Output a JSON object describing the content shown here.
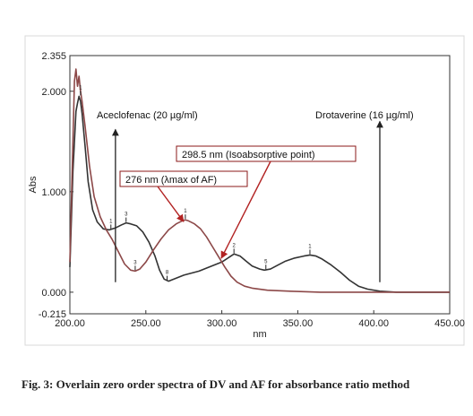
{
  "chart_data": {
    "type": "line",
    "xlabel": "nm",
    "ylabel": "Abs",
    "xlim": [
      200,
      450
    ],
    "ylim": [
      -0.215,
      2.355
    ],
    "xticks": [
      "200.00",
      "250.00",
      "300.00",
      "350.00",
      "400.00",
      "450.00"
    ],
    "yticks": [
      "2.355",
      "2.000",
      "1.000",
      "0.000",
      "-0.215"
    ],
    "grid": false,
    "series": [
      {
        "color": "#333333",
        "points": [
          [
            200,
            0.25
          ],
          [
            202,
            1.2
          ],
          [
            204,
            1.8
          ],
          [
            205,
            1.88
          ],
          [
            206,
            1.95
          ],
          [
            207,
            1.9
          ],
          [
            208,
            1.78
          ],
          [
            210,
            1.45
          ],
          [
            212,
            1.1
          ],
          [
            215,
            0.82
          ],
          [
            218,
            0.7
          ],
          [
            222,
            0.63
          ],
          [
            226,
            0.62
          ],
          [
            230,
            0.64
          ],
          [
            234,
            0.67
          ],
          [
            237,
            0.69
          ],
          [
            240,
            0.68
          ],
          [
            244,
            0.66
          ],
          [
            248,
            0.6
          ],
          [
            252,
            0.5
          ],
          [
            256,
            0.36
          ],
          [
            259,
            0.22
          ],
          [
            262,
            0.13
          ],
          [
            265,
            0.11
          ],
          [
            270,
            0.14
          ],
          [
            275,
            0.17
          ],
          [
            280,
            0.19
          ],
          [
            285,
            0.21
          ],
          [
            290,
            0.24
          ],
          [
            295,
            0.27
          ],
          [
            300,
            0.3
          ],
          [
            305,
            0.35
          ],
          [
            308,
            0.38
          ],
          [
            312,
            0.36
          ],
          [
            316,
            0.31
          ],
          [
            320,
            0.26
          ],
          [
            325,
            0.23
          ],
          [
            328,
            0.22
          ],
          [
            332,
            0.23
          ],
          [
            337,
            0.27
          ],
          [
            342,
            0.31
          ],
          [
            348,
            0.34
          ],
          [
            354,
            0.36
          ],
          [
            358,
            0.37
          ],
          [
            362,
            0.36
          ],
          [
            366,
            0.33
          ],
          [
            372,
            0.27
          ],
          [
            378,
            0.2
          ],
          [
            384,
            0.12
          ],
          [
            390,
            0.06
          ],
          [
            396,
            0.03
          ],
          [
            404,
            0.01
          ],
          [
            415,
            0.0
          ],
          [
            430,
            0.0
          ],
          [
            450,
            0.0
          ]
        ]
      },
      {
        "color": "#8c4848",
        "points": [
          [
            200,
            0.3
          ],
          [
            202,
            1.5
          ],
          [
            203,
            2.1
          ],
          [
            204,
            2.22
          ],
          [
            205,
            2.05
          ],
          [
            206,
            2.15
          ],
          [
            207,
            2.0
          ],
          [
            208,
            1.9
          ],
          [
            210,
            1.65
          ],
          [
            213,
            1.25
          ],
          [
            216,
            0.95
          ],
          [
            220,
            0.75
          ],
          [
            224,
            0.62
          ],
          [
            228,
            0.52
          ],
          [
            232,
            0.4
          ],
          [
            236,
            0.28
          ],
          [
            240,
            0.22
          ],
          [
            243,
            0.21
          ],
          [
            246,
            0.23
          ],
          [
            250,
            0.3
          ],
          [
            255,
            0.42
          ],
          [
            260,
            0.53
          ],
          [
            265,
            0.62
          ],
          [
            270,
            0.68
          ],
          [
            274,
            0.71
          ],
          [
            276,
            0.72
          ],
          [
            278,
            0.71
          ],
          [
            282,
            0.68
          ],
          [
            286,
            0.63
          ],
          [
            290,
            0.55
          ],
          [
            294,
            0.45
          ],
          [
            298,
            0.35
          ],
          [
            302,
            0.25
          ],
          [
            306,
            0.16
          ],
          [
            310,
            0.1
          ],
          [
            315,
            0.06
          ],
          [
            320,
            0.04
          ],
          [
            330,
            0.02
          ],
          [
            345,
            0.01
          ],
          [
            365,
            0.0
          ],
          [
            400,
            0.0
          ],
          [
            450,
            0.0
          ]
        ]
      }
    ],
    "markers": [
      {
        "x": 207,
        "y": 1.95,
        "label": "1"
      },
      {
        "x": 227,
        "y": 0.62,
        "label": "1"
      },
      {
        "x": 237,
        "y": 0.69,
        "label": "3"
      },
      {
        "x": 264,
        "y": 0.11,
        "label": "8"
      },
      {
        "x": 308,
        "y": 0.38,
        "label": "2"
      },
      {
        "x": 329,
        "y": 0.22,
        "label": "5"
      },
      {
        "x": 358,
        "y": 0.37,
        "label": "1"
      },
      {
        "x": 243,
        "y": 0.21,
        "label": "3"
      },
      {
        "x": 276,
        "y": 0.72,
        "label": "1"
      }
    ],
    "annotations": {
      "aceclofenac": {
        "text": "Aceclofenac (20 µg/ml)",
        "arrow_x": 230,
        "arrow_y_from": 0.1,
        "arrow_y_to": 1.62
      },
      "drotaverine": {
        "text": "Drotaverine (16 µg/ml)",
        "arrow_x": 404,
        "arrow_y_from": 0.1,
        "arrow_y_to": 1.7
      },
      "isoabsorptive": {
        "text": "298.5 nm (Isoabsorptive point)",
        "target_x": 298.5,
        "target_y": 0.32
      },
      "lambda_max": {
        "text": "276 nm (λmax of AF)",
        "target_x": 276,
        "target_y": 0.72
      }
    }
  },
  "caption": {
    "text": "Fig. 3: Overlain zero order spectra of DV and AF for absorbance ratio method"
  }
}
